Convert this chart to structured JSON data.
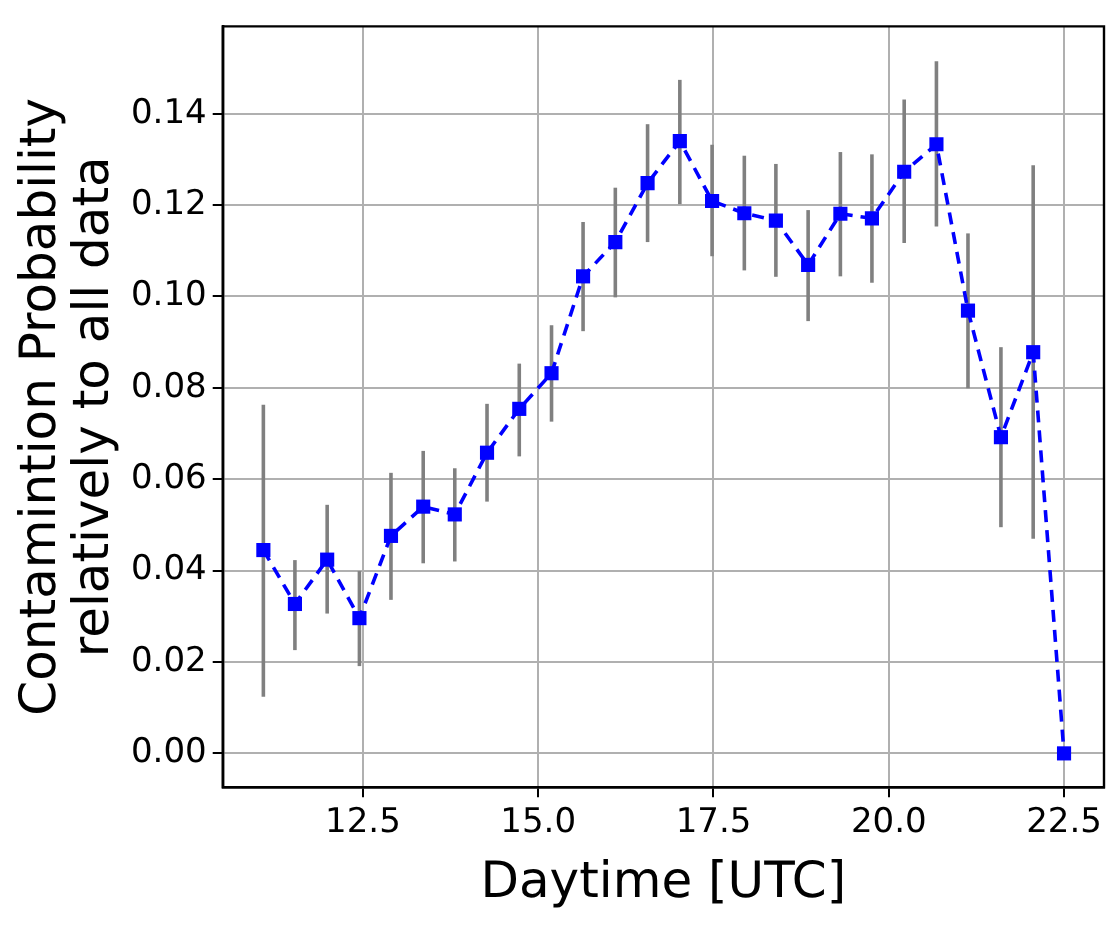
{
  "chart_data": {
    "type": "line",
    "xlabel": "Daytime [UTC]",
    "ylabel": "Contamintion Probability\nrelatively to all data",
    "x": [
      11.08,
      11.53,
      11.99,
      12.45,
      12.9,
      13.36,
      13.81,
      14.27,
      14.73,
      15.19,
      15.64,
      16.1,
      16.56,
      17.02,
      17.48,
      17.94,
      18.39,
      18.85,
      19.31,
      19.76,
      20.22,
      20.68,
      21.13,
      21.6,
      22.06,
      22.5
    ],
    "series": [
      {
        "color": "#0000ff",
        "values": [
          0.0445,
          0.0327,
          0.0424,
          0.0296,
          0.0476,
          0.054,
          0.0523,
          0.0658,
          0.0754,
          0.0832,
          0.1044,
          0.1119,
          0.1248,
          0.134,
          0.1209,
          0.1182,
          0.1166,
          0.1069,
          0.1181,
          0.1171,
          0.1273,
          0.1333,
          0.0969,
          0.0692,
          0.0878,
          0
        ],
        "errors": [
          [
            0.0124,
            0.0763
          ],
          [
            0.0226,
            0.0423
          ],
          [
            0.0306,
            0.0544
          ],
          [
            0.0191,
            0.0399
          ],
          [
            0.0336,
            0.0614
          ],
          [
            0.0416,
            0.0662
          ],
          [
            0.042,
            0.0624
          ],
          [
            0.0551,
            0.0765
          ],
          [
            0.065,
            0.0853
          ],
          [
            0.0726,
            0.0937
          ],
          [
            0.0924,
            0.1163
          ],
          [
            0.0998,
            0.1238
          ],
          [
            0.1119,
            0.1377
          ],
          [
            0.1202,
            0.1474
          ],
          [
            0.1088,
            0.1332
          ],
          [
            0.1057,
            0.1308
          ],
          [
            0.1043,
            0.129
          ],
          [
            0.0946,
            0.1189
          ],
          [
            0.1044,
            0.1316
          ],
          [
            0.103,
            0.1311
          ],
          [
            0.1117,
            0.1431
          ],
          [
            0.1153,
            0.1515
          ],
          [
            0.0799,
            0.1138
          ],
          [
            0.0495,
            0.0889
          ],
          [
            0.047,
            0.1287
          ],
          null
        ]
      }
    ],
    "xlim": [
      10.5,
      23.07
    ],
    "xticks": [
      {
        "value": 12.5,
        "label": "12.5"
      },
      {
        "value": 15,
        "label": "15.0"
      },
      {
        "value": 17.5,
        "label": "17.5"
      },
      {
        "value": 20,
        "label": "20.0"
      },
      {
        "value": 22.5,
        "label": "22.5"
      }
    ],
    "ylim": [
      -0.0074,
      0.1591
    ],
    "yticks": [
      {
        "value": 0,
        "label": "0.00"
      },
      {
        "value": 0.02,
        "label": "0.02"
      },
      {
        "value": 0.04,
        "label": "0.04"
      },
      {
        "value": 0.06,
        "label": "0.06"
      },
      {
        "value": 0.08,
        "label": "0.08"
      },
      {
        "value": 0.1,
        "label": "0.10"
      },
      {
        "value": 0.12,
        "label": "0.12"
      },
      {
        "value": 0.14,
        "label": "0.14"
      }
    ],
    "grid": true,
    "marker": "square",
    "line_style": "dashed"
  }
}
